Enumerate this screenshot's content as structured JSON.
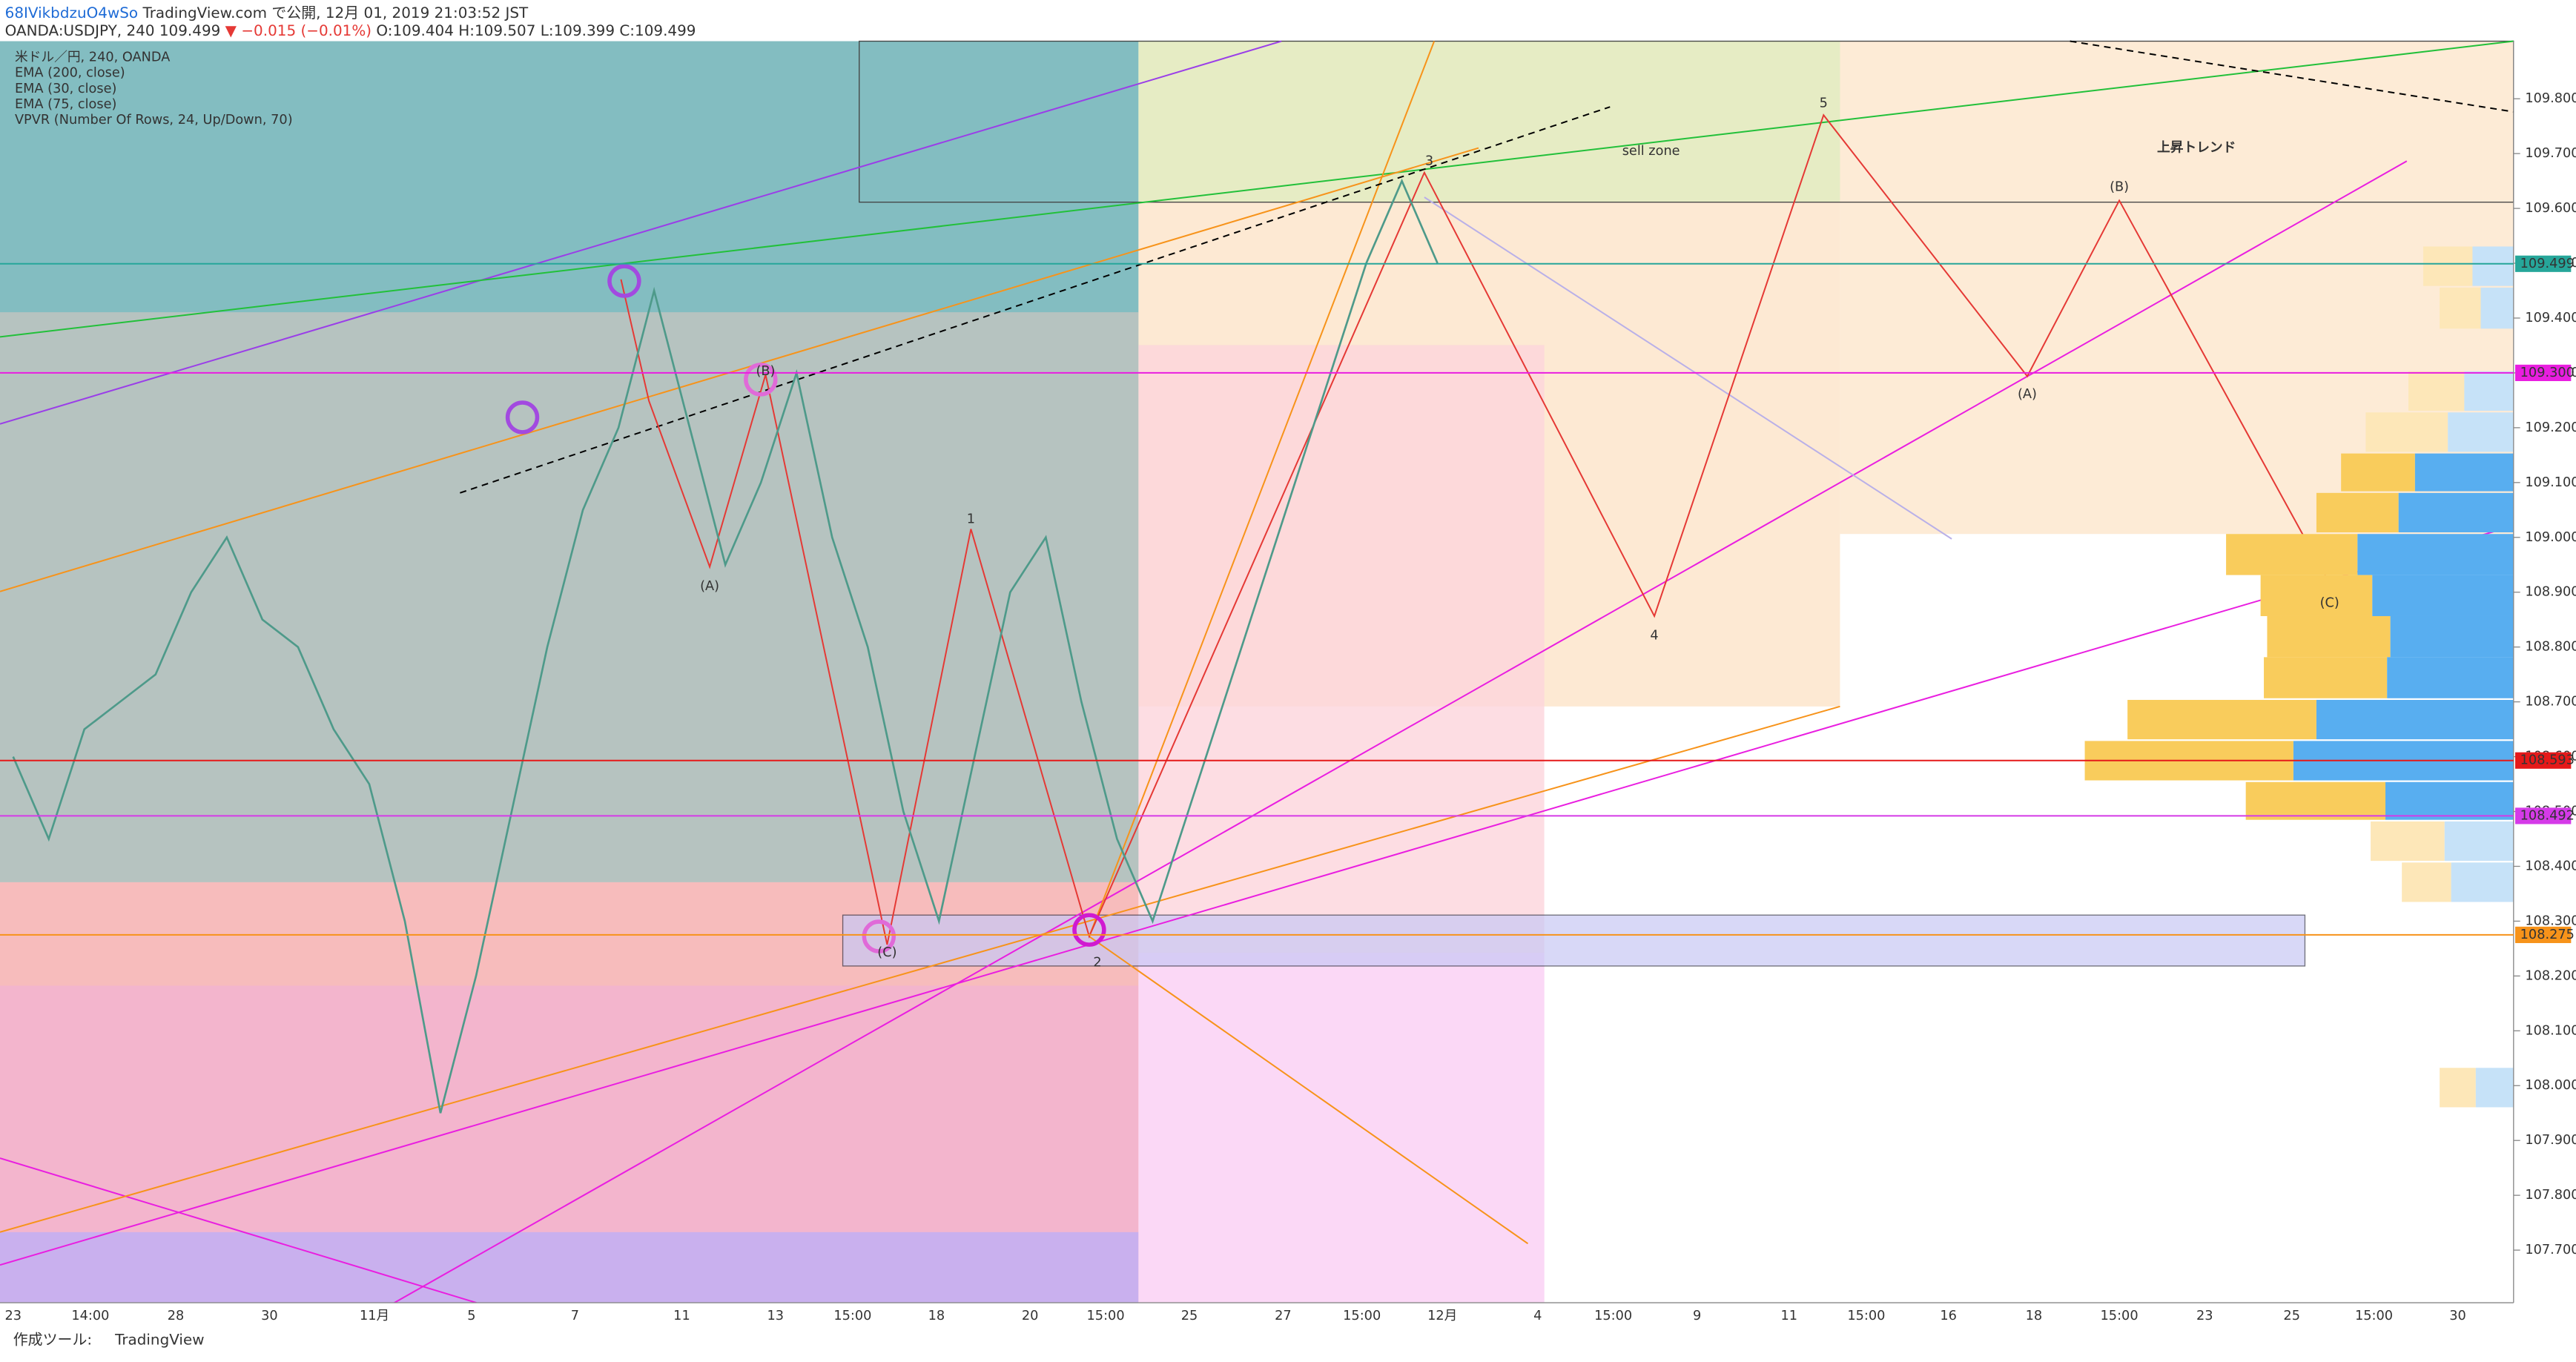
{
  "header": {
    "publisher": "68IVikbdzuO4wSo",
    "published": "TradingView.com で公開, 12月 01, 2019 21:03:52 JST",
    "symbol": "OANDA:USDJPY, 240",
    "price": "109.499",
    "change": "▼ −0.015 (−0.01%)",
    "ohlc": [
      "O:109.404",
      "H:109.507",
      "L:109.399",
      "C:109.499"
    ]
  },
  "legend": [
    "米ドル／円, 240, OANDA",
    "EMA (200, close)",
    "EMA (30, close)",
    "EMA (75, close)",
    "VPVR (Number Of Rows, 24, Up/Down, 70)"
  ],
  "chart_data": {
    "type": "line",
    "color": "#4e9a8a",
    "values": [
      108.6,
      108.45,
      108.65,
      108.7,
      108.75,
      108.9,
      109.0,
      108.85,
      108.8,
      108.65,
      108.55,
      108.3,
      107.95,
      108.2,
      108.5,
      108.8,
      109.05,
      109.2,
      109.45,
      109.2,
      108.95,
      109.1,
      109.3,
      109.0,
      108.8,
      108.5,
      108.3,
      108.6,
      108.9,
      109.0,
      108.7,
      108.45,
      108.3,
      108.5,
      108.7,
      108.9,
      109.1,
      109.3,
      109.5,
      109.65,
      109.5
    ],
    "ylim": [
      107.604,
      109.905
    ],
    "yticks": [
      {
        "value": 107.7,
        "label": "107.700"
      },
      {
        "value": 107.8,
        "label": "107.800"
      },
      {
        "value": 107.9,
        "label": "107.900"
      },
      {
        "value": 108.0,
        "label": "108.000"
      },
      {
        "value": 108.1,
        "label": "108.100"
      },
      {
        "value": 108.2,
        "label": "108.200"
      },
      {
        "value": 108.3,
        "label": "108.300"
      },
      {
        "value": 108.4,
        "label": "108.400"
      },
      {
        "value": 108.5,
        "label": "108.500"
      },
      {
        "value": 108.6,
        "label": "108.600"
      },
      {
        "value": 108.7,
        "label": "108.700"
      },
      {
        "value": 108.8,
        "label": "108.800"
      },
      {
        "value": 108.9,
        "label": "108.900"
      },
      {
        "value": 109.0,
        "label": "109.000"
      },
      {
        "value": 109.1,
        "label": "109.100"
      },
      {
        "value": 109.2,
        "label": "109.200"
      },
      {
        "value": 109.3,
        "label": "109.300"
      },
      {
        "value": 109.4,
        "label": "109.400"
      },
      {
        "value": 109.5,
        "label": "109.500"
      },
      {
        "value": 109.6,
        "label": "109.600"
      },
      {
        "value": 109.7,
        "label": "109.700"
      },
      {
        "value": 109.8,
        "label": "109.800"
      }
    ],
    "time_labels": [
      "23",
      "14:00",
      "28",
      "30",
      "11月",
      "5",
      "7",
      "11",
      "13",
      "15:00",
      "18",
      "20",
      "15:00",
      "25",
      "27",
      "15:00",
      "12月",
      "4",
      "15:00",
      "9",
      "11",
      "15:00",
      "16",
      "18",
      "15:00",
      "23",
      "25",
      "15:00",
      "30"
    ],
    "price_lines": [
      {
        "value": 109.499,
        "color": "#26a69a"
      },
      {
        "value": {
          "value": 109.3,
          "label": "109.300"
        },
        "color": "#e91ee0"
      },
      {
        "value": 108.593,
        "color": "#e51919"
      },
      {
        "value": 108.492,
        "color": "#d53ae8"
      },
      {
        "value": 108.275,
        "color": "#f7931a"
      }
    ],
    "waves": [
      "(A)",
      "(B)",
      "(C)",
      "1",
      "2",
      "3",
      "4",
      "5",
      "(A)",
      "(B)",
      "(C)"
    ],
    "zone_label": "sell zone",
    "trend_label": "上昇トレンド"
  },
  "footer": {
    "text": "作成ツール:",
    "brand": "TradingView"
  }
}
